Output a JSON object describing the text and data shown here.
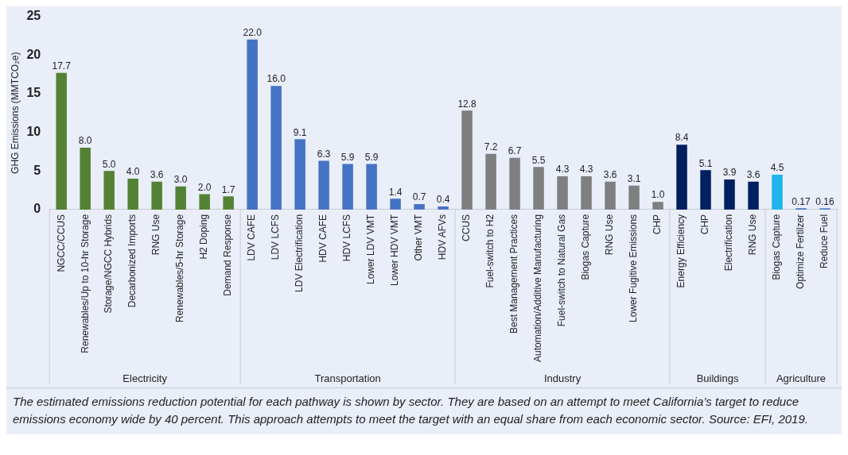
{
  "chart_data": {
    "type": "bar",
    "ylabel": "GHG Emissions (MMTCO₂e)",
    "ylim": [
      0,
      25
    ],
    "yticks": [
      0,
      5,
      10,
      15,
      20,
      25
    ],
    "grid": false,
    "legend": false,
    "categories": [
      "NGCC/CCUS",
      "Renewables/Up to 10-hr Storage",
      "Storage/NGCC Hybrids",
      "Decarbonized Imports",
      "RNG Use",
      "Renewables/5-hr Storage",
      "H2 Doping",
      "Demand Response",
      "LDV CAFE",
      "LDV LCFS",
      "LDV Electrification",
      "HDV CAFE",
      "HDV LCFS",
      "Lower LDV VMT",
      "Lower HDV VMT",
      "Other VMT",
      "HDV AFVs",
      "CCUS",
      "Fuel-switch to H2",
      "Best Management Practices",
      "Automation/Additive Manufacturing",
      "Fuel-switch to Natural Gas",
      "Biogas Capture",
      "RNG Use",
      "Lower Fugitive Emissions",
      "CHP",
      "Energy Efficiency",
      "CHP",
      "Electrification",
      "RNG Use",
      "Biogas Capture",
      "Optimize Fertilzer",
      "Reduce Fuel"
    ],
    "series": [
      {
        "color": "#548235",
        "values": [
          17.7,
          8.0,
          5.0,
          4.0,
          3.6,
          3.0,
          2.0,
          1.7,
          null,
          null,
          null,
          null,
          null,
          null,
          null,
          null,
          null,
          null,
          null,
          null,
          null,
          null,
          null,
          null,
          null,
          null,
          null,
          null,
          null,
          null,
          null,
          null,
          null
        ],
        "value_labels": [
          "17.7",
          "8.0",
          "5.0",
          "4.0",
          "3.6",
          "3.0",
          "2.0",
          "1.7",
          null,
          null,
          null,
          null,
          null,
          null,
          null,
          null,
          null,
          null,
          null,
          null,
          null,
          null,
          null,
          null,
          null,
          null,
          null,
          null,
          null,
          null,
          null,
          null,
          null
        ]
      },
      {
        "color": "#4472c4",
        "values": [
          null,
          null,
          null,
          null,
          null,
          null,
          null,
          null,
          22.0,
          16.0,
          9.1,
          6.3,
          5.9,
          5.9,
          1.4,
          0.7,
          0.4,
          null,
          null,
          null,
          null,
          null,
          null,
          null,
          null,
          null,
          null,
          null,
          null,
          null,
          null,
          null,
          null
        ],
        "value_labels": [
          null,
          null,
          null,
          null,
          null,
          null,
          null,
          null,
          "22.0",
          "16.0",
          "9.1",
          "6.3",
          "5.9",
          "5.9",
          "1.4",
          "0.7",
          "0.4",
          null,
          null,
          null,
          null,
          null,
          null,
          null,
          null,
          null,
          null,
          null,
          null,
          null,
          null,
          null,
          null
        ]
      },
      {
        "color": "#7f7f7f",
        "values": [
          null,
          null,
          null,
          null,
          null,
          null,
          null,
          null,
          null,
          null,
          null,
          null,
          null,
          null,
          null,
          null,
          null,
          12.8,
          7.2,
          6.7,
          5.5,
          4.3,
          4.3,
          3.6,
          3.1,
          1.0,
          null,
          null,
          null,
          null,
          null,
          null,
          null
        ],
        "value_labels": [
          null,
          null,
          null,
          null,
          null,
          null,
          null,
          null,
          null,
          null,
          null,
          null,
          null,
          null,
          null,
          null,
          null,
          "12.8",
          "7.2",
          "6.7",
          "5.5",
          "4.3",
          "4.3",
          "3.6",
          "3.1",
          "1.0",
          null,
          null,
          null,
          null,
          null,
          null,
          null
        ]
      },
      {
        "color": "#002060",
        "values": [
          null,
          null,
          null,
          null,
          null,
          null,
          null,
          null,
          null,
          null,
          null,
          null,
          null,
          null,
          null,
          null,
          null,
          null,
          null,
          null,
          null,
          null,
          null,
          null,
          null,
          null,
          8.4,
          5.1,
          3.9,
          3.6,
          null,
          null,
          null
        ],
        "value_labels": [
          null,
          null,
          null,
          null,
          null,
          null,
          null,
          null,
          null,
          null,
          null,
          null,
          null,
          null,
          null,
          null,
          null,
          null,
          null,
          null,
          null,
          null,
          null,
          null,
          null,
          null,
          "8.4",
          "5.1",
          "3.9",
          "3.6",
          null,
          null,
          null
        ]
      },
      {
        "color": "#1eb4ee",
        "colors": [
          null,
          null,
          null,
          null,
          null,
          null,
          null,
          null,
          null,
          null,
          null,
          null,
          null,
          null,
          null,
          null,
          null,
          null,
          null,
          null,
          null,
          null,
          null,
          null,
          null,
          null,
          null,
          null,
          null,
          null,
          "#1eb4ee",
          "#4472c4",
          "#4472c4"
        ],
        "values": [
          null,
          null,
          null,
          null,
          null,
          null,
          null,
          null,
          null,
          null,
          null,
          null,
          null,
          null,
          null,
          null,
          null,
          null,
          null,
          null,
          null,
          null,
          null,
          null,
          null,
          null,
          null,
          null,
          null,
          null,
          4.5,
          0.17,
          0.16
        ],
        "value_labels": [
          null,
          null,
          null,
          null,
          null,
          null,
          null,
          null,
          null,
          null,
          null,
          null,
          null,
          null,
          null,
          null,
          null,
          null,
          null,
          null,
          null,
          null,
          null,
          null,
          null,
          null,
          null,
          null,
          null,
          null,
          "4.5",
          "0.17",
          "0.16"
        ]
      }
    ],
    "annotations": [
      "Electricity",
      "Transportation",
      "Industry",
      "Buildings",
      "Agriculture",
      "The estimated emissions reduction potential for each pathway is shown by sector. They are based on an attempt to meet California’s target to reduce emissions economy wide by 40 percent. This approach attempts to meet the target with an equal share from each economic sector. Source: EFI, 2019."
    ]
  }
}
